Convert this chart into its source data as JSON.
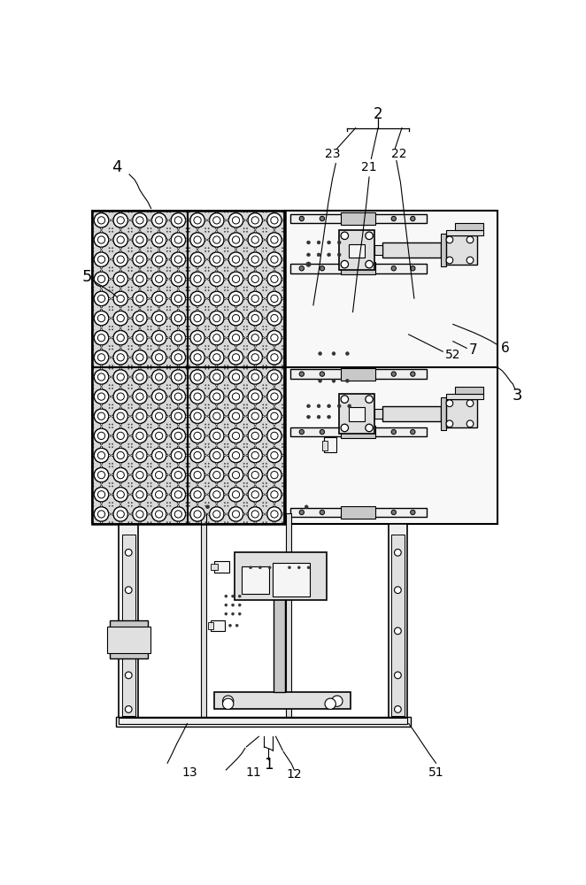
{
  "bg_color": "#ffffff",
  "lc": "#000000",
  "panel_fill": "#e8e8e8",
  "rail_fill": "#f0f0f0",
  "mech_fill": "#e0e0e0",
  "dark_fill": "#c8c8c8",
  "light_fill": "#f5f5f5"
}
